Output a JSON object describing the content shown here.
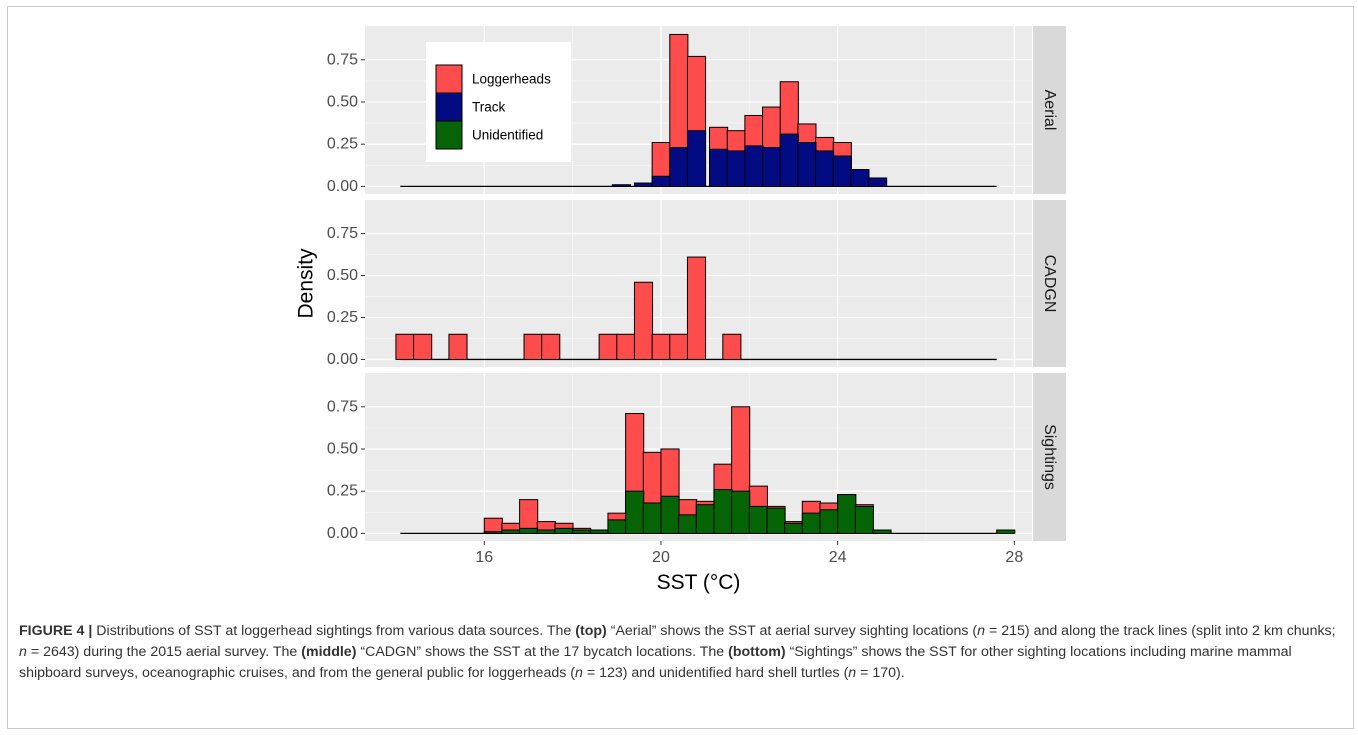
{
  "chart_data": {
    "type": "histogram",
    "xlabel": "SST (°C)",
    "ylabel": "Density",
    "xlim": [
      13.3,
      28.4
    ],
    "ylim": [
      -0.045,
      0.95
    ],
    "x_ticks": [
      16,
      20,
      24,
      28
    ],
    "y_ticks": [
      0.0,
      0.25,
      0.5,
      0.75
    ],
    "y_tick_labels": [
      "0.00",
      "0.25",
      "0.50",
      "0.75"
    ],
    "bin_width": 0.41,
    "grid": true,
    "legend": {
      "placement": "top-left of Aerial panel",
      "entries": [
        {
          "name": "Loggerheads",
          "color": "#fe4b4b"
        },
        {
          "name": "Track",
          "color": "#020b82"
        },
        {
          "name": "Unidentified",
          "color": "#056405"
        }
      ]
    },
    "baseline_range": [
      14.1,
      27.6
    ],
    "panels": [
      {
        "name": "Aerial",
        "series": [
          {
            "name": "Loggerheads",
            "color": "#fe4b4b",
            "bins": [
              [
                19.8,
                0.26
              ],
              [
                20.2,
                0.9
              ],
              [
                20.6,
                0.77
              ],
              [
                21.1,
                0.35
              ],
              [
                21.5,
                0.33
              ],
              [
                21.9,
                0.42
              ],
              [
                22.3,
                0.47
              ],
              [
                22.7,
                0.62
              ],
              [
                23.1,
                0.37
              ],
              [
                23.5,
                0.29
              ],
              [
                23.9,
                0.26
              ]
            ]
          },
          {
            "name": "Track",
            "color": "#020b82",
            "bins": [
              [
                18.9,
                0.01
              ],
              [
                19.4,
                0.02
              ],
              [
                19.8,
                0.06
              ],
              [
                20.2,
                0.23
              ],
              [
                20.6,
                0.33
              ],
              [
                21.1,
                0.22
              ],
              [
                21.5,
                0.21
              ],
              [
                21.9,
                0.24
              ],
              [
                22.3,
                0.23
              ],
              [
                22.7,
                0.31
              ],
              [
                23.1,
                0.26
              ],
              [
                23.5,
                0.21
              ],
              [
                23.9,
                0.18
              ],
              [
                24.3,
                0.1
              ],
              [
                24.7,
                0.05
              ]
            ]
          }
        ]
      },
      {
        "name": "CADGN",
        "series": [
          {
            "name": "Loggerheads",
            "color": "#fe4b4b",
            "bins": [
              [
                14.0,
                0.15
              ],
              [
                14.4,
                0.15
              ],
              [
                15.2,
                0.15
              ],
              [
                16.9,
                0.15
              ],
              [
                17.3,
                0.15
              ],
              [
                18.6,
                0.15
              ],
              [
                19.0,
                0.15
              ],
              [
                19.4,
                0.46
              ],
              [
                19.8,
                0.15
              ],
              [
                20.2,
                0.15
              ],
              [
                20.6,
                0.61
              ],
              [
                21.4,
                0.15
              ]
            ]
          }
        ]
      },
      {
        "name": "Sightings",
        "series": [
          {
            "name": "Loggerheads",
            "color": "#fe4b4b",
            "bins": [
              [
                16.0,
                0.09
              ],
              [
                16.4,
                0.06
              ],
              [
                16.8,
                0.2
              ],
              [
                17.2,
                0.07
              ],
              [
                17.6,
                0.06
              ],
              [
                18.0,
                0.03
              ],
              [
                18.4,
                0.02
              ],
              [
                18.8,
                0.12
              ],
              [
                19.2,
                0.71
              ],
              [
                19.6,
                0.48
              ],
              [
                20.0,
                0.5
              ],
              [
                20.4,
                0.2
              ],
              [
                20.8,
                0.19
              ],
              [
                21.2,
                0.41
              ],
              [
                21.6,
                0.75
              ],
              [
                22.0,
                0.28
              ],
              [
                22.4,
                0.16
              ],
              [
                22.8,
                0.07
              ],
              [
                23.2,
                0.19
              ],
              [
                23.6,
                0.18
              ],
              [
                24.0,
                0.23
              ],
              [
                24.4,
                0.17
              ]
            ]
          },
          {
            "name": "Unidentified",
            "color": "#056405",
            "bins": [
              [
                16.0,
                0.01
              ],
              [
                16.4,
                0.02
              ],
              [
                16.8,
                0.03
              ],
              [
                17.2,
                0.02
              ],
              [
                17.6,
                0.03
              ],
              [
                18.0,
                0.02
              ],
              [
                18.4,
                0.02
              ],
              [
                18.8,
                0.08
              ],
              [
                19.2,
                0.25
              ],
              [
                19.6,
                0.18
              ],
              [
                20.0,
                0.22
              ],
              [
                20.4,
                0.11
              ],
              [
                20.8,
                0.17
              ],
              [
                21.2,
                0.26
              ],
              [
                21.6,
                0.25
              ],
              [
                22.0,
                0.16
              ],
              [
                22.4,
                0.15
              ],
              [
                22.8,
                0.06
              ],
              [
                23.2,
                0.12
              ],
              [
                23.6,
                0.14
              ],
              [
                24.0,
                0.23
              ],
              [
                24.4,
                0.16
              ],
              [
                24.8,
                0.02
              ],
              [
                27.6,
                0.02
              ]
            ]
          }
        ]
      }
    ]
  },
  "caption": {
    "label": "FIGURE 4 |",
    "intro": "Distributions of SST at loggerhead sightings from various data sources. The",
    "top_bold": "(top)",
    "top_text_a": "“Aerial” shows the SST at aerial survey sighting locations (",
    "n_sym": "n",
    "top_n1": "= 215) and along the track lines (split into 2 km chunks;",
    "top_n2": "= 2643) during the 2015 aerial survey. The",
    "middle_bold": "(middle)",
    "middle_text": "“CADGN” shows the SST at the 17 bycatch locations. The",
    "bottom_bold": "(bottom)",
    "bottom_text_a": "“Sightings” shows the SST for other sighting locations including marine mammal shipboard surveys, oceanographic cruises, and from the general public for loggerheads (",
    "bottom_n1": "= 123) and unidentified hard shell turtles (",
    "bottom_n2": "= 170)."
  }
}
